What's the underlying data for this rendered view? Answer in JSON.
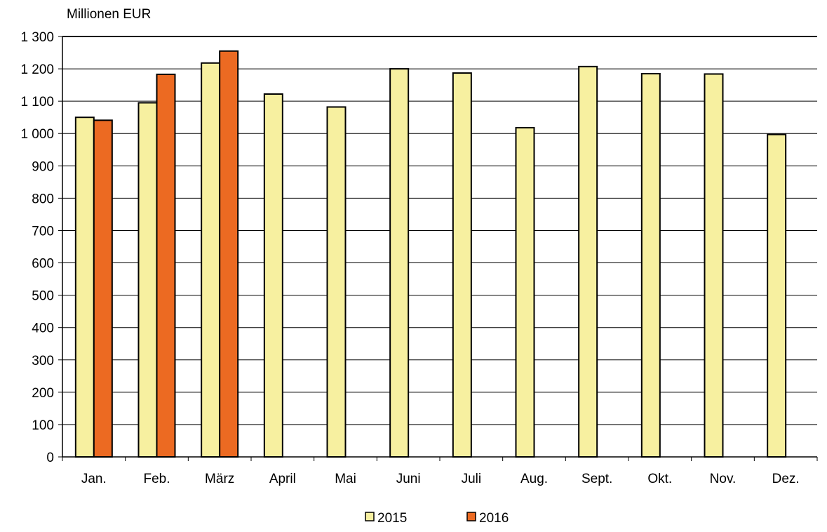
{
  "chart_data": {
    "type": "bar",
    "unit_label": "Millionen EUR",
    "categories": [
      "Jan.",
      "Feb.",
      "März",
      "April",
      "Mai",
      "Juni",
      "Juli",
      "Aug.",
      "Sept.",
      "Okt.",
      "Nov.",
      "Dez."
    ],
    "y_ticks": [
      "0",
      "100",
      "200",
      "300",
      "400",
      "500",
      "600",
      "700",
      "800",
      "900",
      "1 000",
      "1 100",
      "1 200",
      "1 300"
    ],
    "ylim": [
      0,
      1300
    ],
    "y_step": 100,
    "grid": true,
    "legend_position": "bottom-center",
    "series": [
      {
        "name": "2015",
        "color": "#F7F0A0",
        "values": [
          1050,
          1095,
          1218,
          1122,
          1082,
          1200,
          1187,
          1018,
          1207,
          1185,
          1184,
          997
        ]
      },
      {
        "name": "2016",
        "color": "#EC6A22",
        "values": [
          1041,
          1183,
          1255,
          null,
          null,
          null,
          null,
          null,
          null,
          null,
          null,
          null
        ]
      }
    ]
  }
}
